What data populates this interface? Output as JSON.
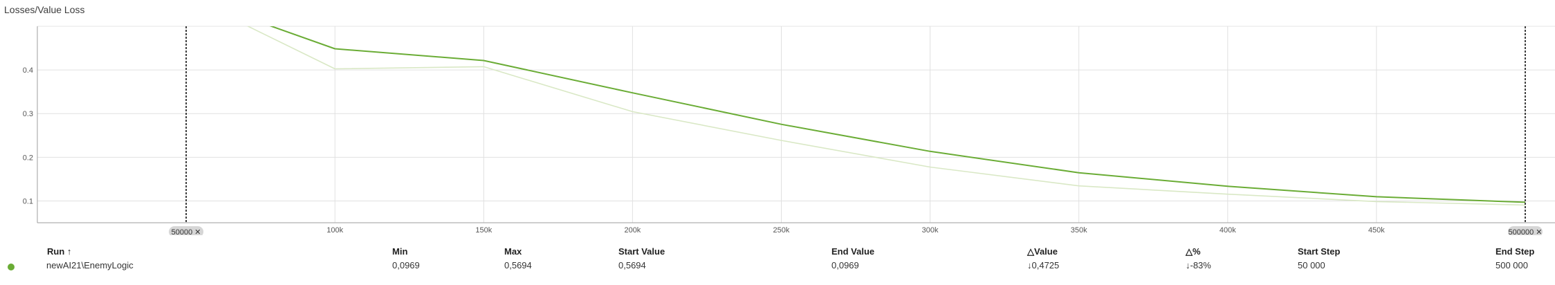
{
  "chart_data": {
    "type": "line",
    "title": "Losses/Value Loss",
    "xlabel": "",
    "ylabel": "",
    "xlim": [
      0,
      510000
    ],
    "ylim": [
      0.05,
      0.5
    ],
    "grid": true,
    "x_ticks": [
      100000,
      150000,
      200000,
      250000,
      300000,
      350000,
      400000,
      450000
    ],
    "x_tick_labels": [
      "100k",
      "150k",
      "200k",
      "250k",
      "300k",
      "350k",
      "400k",
      "450k"
    ],
    "y_ticks": [
      0.1,
      0.2,
      0.3,
      0.4
    ],
    "y_tick_labels": [
      "0.1",
      "0.2",
      "0.3",
      "0.4"
    ],
    "range_markers": [
      {
        "step": 50000,
        "label": "50000 ✕"
      },
      {
        "step": 500000,
        "label": "500000 ✕"
      }
    ],
    "series": [
      {
        "name": "newAI21\\EnemyLogic",
        "style": "smoothed",
        "color": "#6aac35",
        "x": [
          50000,
          100000,
          150000,
          200000,
          250000,
          300000,
          350000,
          400000,
          450000,
          500000
        ],
        "y": [
          0.5694,
          0.4485,
          0.4215,
          0.3475,
          0.2755,
          0.2135,
          0.1645,
          0.1335,
          0.1095,
          0.0969
        ]
      },
      {
        "name": "newAI21\\EnemyLogic",
        "style": "raw",
        "color": "#d9e8c5",
        "x": [
          50000,
          100000,
          150000,
          200000,
          250000,
          300000,
          350000,
          400000,
          450000,
          500000
        ],
        "y": [
          0.5694,
          0.4025,
          0.4075,
          0.3045,
          0.2385,
          0.1775,
          0.1345,
          0.1155,
          0.0985,
          0.0905
        ]
      }
    ]
  },
  "table": {
    "headers": {
      "run": "Run ↑",
      "min": "Min",
      "max": "Max",
      "start_value": "Start Value",
      "end_value": "End Value",
      "delta_value": "△Value",
      "delta_pct": "△%",
      "start_step": "Start Step",
      "end_step": "End Step"
    },
    "row": {
      "color": "#6aac35",
      "run": "newAI21\\EnemyLogic",
      "min": "0,0969",
      "max": "0,5694",
      "start_value": "0,5694",
      "end_value": "0,0969",
      "delta_value": "↓0,4725",
      "delta_pct": "↓-83%",
      "start_step": "50 000",
      "end_step": "500 000"
    }
  }
}
